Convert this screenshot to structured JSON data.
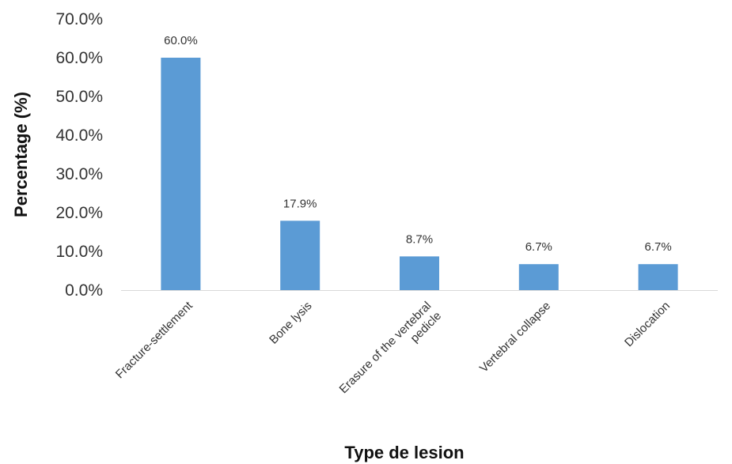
{
  "chart_data": {
    "type": "bar",
    "title": "",
    "xlabel": "Type de lesion",
    "ylabel": "Percentage (%)",
    "ylim": [
      0,
      70
    ],
    "yticks": [
      0,
      10,
      20,
      30,
      40,
      50,
      60,
      70
    ],
    "ytick_labels": [
      "0.0%",
      "10.0%",
      "20.0%",
      "30.0%",
      "40.0%",
      "50.0%",
      "60.0%",
      "70.0%"
    ],
    "grid": false,
    "categories": [
      [
        "Fracture-settlement"
      ],
      [
        "Bone lysis"
      ],
      [
        "Erasure of the vertebral",
        "pedicle"
      ],
      [
        "Vertebral collapse"
      ],
      [
        "Dislocation"
      ]
    ],
    "values": [
      60.0,
      17.9,
      8.7,
      6.7,
      6.7
    ],
    "data_labels": [
      "60.0%",
      "17.9%",
      "8.7%",
      "6.7%",
      "6.7%"
    ],
    "bar_color": "#5B9BD5",
    "axis_color": "#D9D9D9"
  }
}
